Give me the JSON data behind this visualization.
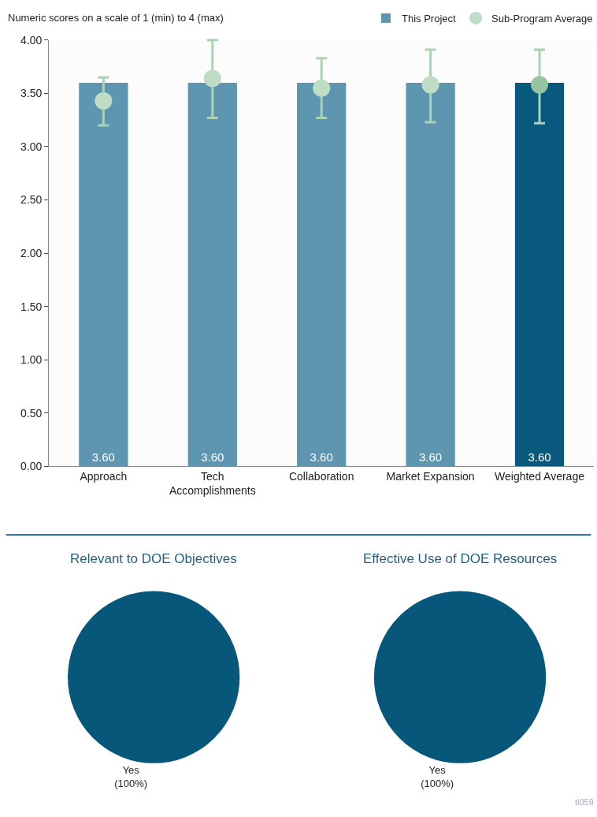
{
  "chart_data": [
    {
      "type": "bar",
      "title": "Numeric scores on a scale of 1 (min) to 4 (max)",
      "categories": [
        "Approach",
        "Tech\nAccomplishments",
        "Collaboration",
        "Market Expansion",
        "Weighted Average"
      ],
      "ylim": [
        0,
        4
      ],
      "yticks": [
        {
          "value": 0,
          "label": "0.00"
        },
        {
          "value": 0.5,
          "label": "0.50"
        },
        {
          "value": 1,
          "label": "1.00"
        },
        {
          "value": 1.5,
          "label": "1.50"
        },
        {
          "value": 2,
          "label": "2.00"
        },
        {
          "value": 2.5,
          "label": "2.50"
        },
        {
          "value": 3,
          "label": "3.00"
        },
        {
          "value": 3.5,
          "label": "3.50"
        },
        {
          "value": 4,
          "label": "4.00"
        }
      ],
      "legend": "top right",
      "series": [
        {
          "name": "This Project",
          "type": "bar",
          "color": "#08597d",
          "colors": [
            "#5e95b0",
            "#5e95b0",
            "#5e95b0",
            "#5e95b0",
            "#08597d"
          ],
          "values": [
            3.6,
            3.6,
            3.6,
            3.6,
            3.6
          ],
          "value_labels": [
            "3.60",
            "3.60",
            "3.60",
            "3.60",
            "3.60"
          ]
        },
        {
          "name": "Sub-Program Average",
          "type": "scatter",
          "marker": "circle",
          "color": "#a9d3b3",
          "colors": [
            "#bfdcc5",
            "#bfdcc5",
            "#bfdcc5",
            "#bfdcc5",
            "#96c4a0"
          ],
          "values": [
            3.43,
            3.64,
            3.55,
            3.58,
            3.58
          ],
          "errors": [
            [
              3.2,
              3.65
            ],
            [
              3.27,
              4.0
            ],
            [
              3.27,
              3.83
            ],
            [
              3.23,
              3.91
            ],
            [
              3.22,
              3.91
            ]
          ]
        }
      ]
    },
    {
      "type": "pie",
      "title": "Relevant to DOE Objectives",
      "categories": [
        "Yes"
      ],
      "values": [
        100
      ],
      "colors": [
        "#07577a"
      ],
      "value_labels": [
        "(100%)"
      ]
    },
    {
      "type": "pie",
      "title": "Effective Use of DOE Resources",
      "categories": [
        "Yes"
      ],
      "values": [
        100
      ],
      "colors": [
        "#07577a"
      ],
      "value_labels": [
        "(100%)"
      ],
      "annotations": [
        "ti059"
      ]
    }
  ]
}
